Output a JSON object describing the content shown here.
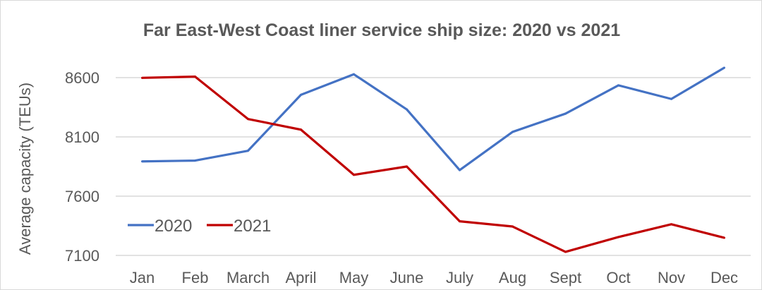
{
  "chart_data": {
    "type": "line",
    "title": "Far East-West Coast liner service ship size: 2020 vs 2021",
    "xlabel": "",
    "ylabel": "Average capacity (TEUs)",
    "categories": [
      "Jan",
      "Feb",
      "March",
      "April",
      "May",
      "June",
      "July",
      "Aug",
      "Sept",
      "Oct",
      "Nov",
      "Dec"
    ],
    "yticks": [
      "7100",
      "7600",
      "8100",
      "8600"
    ],
    "ylim": [
      7100,
      8700
    ],
    "grid": true,
    "legend_position": "lower-left",
    "series": [
      {
        "name": "2020",
        "color": "#4472c4",
        "values": [
          7893,
          7900,
          7983,
          8455,
          8628,
          8332,
          7820,
          8142,
          8296,
          8535,
          8420,
          8683
        ]
      },
      {
        "name": "2021",
        "color": "#c00000",
        "values": [
          8598,
          8608,
          8251,
          8161,
          7780,
          7850,
          7388,
          7344,
          7130,
          7255,
          7363,
          7249
        ]
      }
    ]
  }
}
